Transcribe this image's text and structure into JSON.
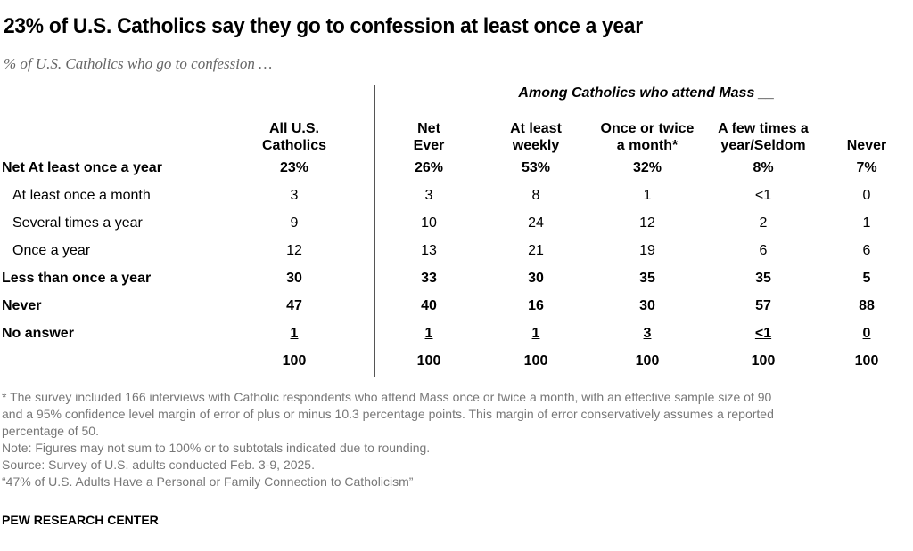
{
  "chart_data": {
    "type": "table",
    "title": "23% of U.S. Catholics say they go to confession at least once a year",
    "subtitle": "% of U.S. Catholics who go to confession …",
    "group_header": "Among Catholics who attend Mass __",
    "columns": [
      [
        "All U.S.",
        "Catholics"
      ],
      [
        "Net",
        "Ever"
      ],
      [
        "At least",
        "weekly"
      ],
      [
        "Once or twice",
        "a month*"
      ],
      [
        "A few times a",
        "year/Seldom"
      ],
      [
        "",
        "Never"
      ]
    ],
    "rows": [
      {
        "label": "Net At least once a year",
        "bold": true,
        "indent": false,
        "values": [
          "23%",
          "26%",
          "53%",
          "32%",
          "8%",
          "7%"
        ]
      },
      {
        "label": "At least once a month",
        "bold": false,
        "indent": true,
        "values": [
          "3",
          "3",
          "8",
          "1",
          "<1",
          "0"
        ]
      },
      {
        "label": "Several times a year",
        "bold": false,
        "indent": true,
        "values": [
          "9",
          "10",
          "24",
          "12",
          "2",
          "1"
        ]
      },
      {
        "label": "Once a year",
        "bold": false,
        "indent": true,
        "values": [
          "12",
          "13",
          "21",
          "19",
          "6",
          "6"
        ]
      },
      {
        "label": "Less than once a year",
        "bold": true,
        "indent": false,
        "values": [
          "30",
          "33",
          "30",
          "35",
          "35",
          "5"
        ]
      },
      {
        "label": "Never",
        "bold": true,
        "indent": false,
        "values": [
          "47",
          "40",
          "16",
          "30",
          "57",
          "88"
        ]
      },
      {
        "label": "No answer",
        "bold": true,
        "indent": false,
        "underline": true,
        "values": [
          "1",
          "1",
          "1",
          "3",
          "<1",
          "0"
        ]
      },
      {
        "label": "",
        "bold": true,
        "indent": false,
        "values": [
          "100",
          "100",
          "100",
          "100",
          "100",
          "100"
        ]
      }
    ]
  },
  "notes": [
    "* The survey included 166 interviews with Catholic respondents who attend Mass once or twice a month, with an effective sample size of 90",
    "and a 95% confidence level margin of error of plus or minus 10.3 percentage points. This margin of error conservatively assumes a reported",
    "percentage of 50.",
    "Note: Figures may not sum to 100% or to subtotals indicated due to rounding.",
    "Source: Survey of U.S. adults conducted Feb. 3-9, 2025.",
    "“47% of U.S. Adults Have a Personal or Family Connection to Catholicism”"
  ],
  "brand": "PEW RESEARCH CENTER"
}
